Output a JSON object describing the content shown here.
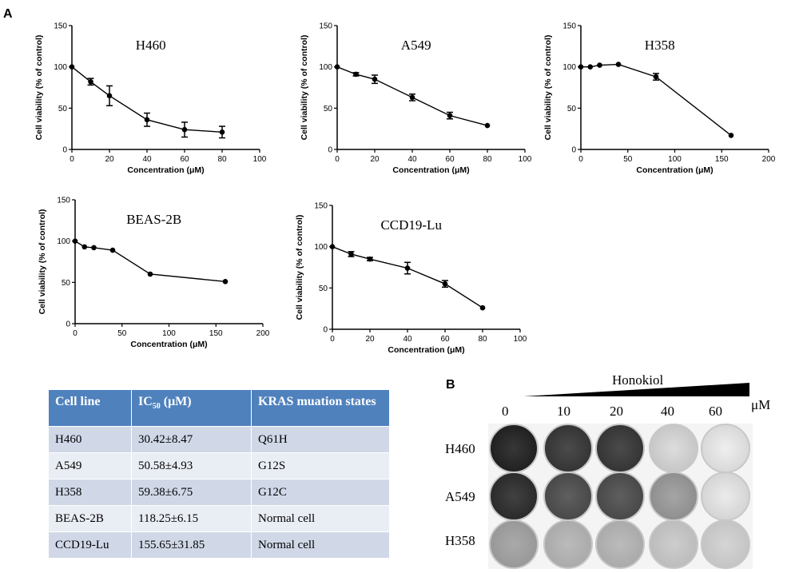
{
  "panel_labels": {
    "a": "A",
    "b": "B"
  },
  "chart_data": [
    {
      "type": "line",
      "title": "H460",
      "xlabel": "Concentration (μM)",
      "ylabel": "Cell viability (% of control)",
      "xlim": [
        0,
        100
      ],
      "ylim": [
        0,
        150
      ],
      "xticks": [
        0,
        20,
        40,
        60,
        80,
        100
      ],
      "yticks": [
        0,
        50,
        100,
        150
      ],
      "series": [
        {
          "name": "H460",
          "x": [
            0,
            10,
            20,
            40,
            60,
            80
          ],
          "values": [
            100,
            82,
            65,
            36,
            24,
            21
          ],
          "errors": [
            0,
            4,
            12,
            8,
            9,
            7
          ]
        }
      ]
    },
    {
      "type": "line",
      "title": "A549",
      "xlabel": "Concentration (μM)",
      "ylabel": "Cell viability (% of control)",
      "xlim": [
        0,
        100
      ],
      "ylim": [
        0,
        150
      ],
      "xticks": [
        0,
        20,
        40,
        60,
        80,
        100
      ],
      "yticks": [
        0,
        50,
        100,
        150
      ],
      "series": [
        {
          "name": "A549",
          "x": [
            0,
            10,
            20,
            40,
            60,
            80
          ],
          "values": [
            100,
            91,
            85,
            63,
            41,
            29
          ],
          "errors": [
            0,
            2,
            5,
            4,
            4,
            1
          ]
        }
      ]
    },
    {
      "type": "line",
      "title": "H358",
      "xlabel": "Concentration (μM)",
      "ylabel": "Cell viability (% of control)",
      "xlim": [
        0,
        200
      ],
      "ylim": [
        0,
        150
      ],
      "xticks": [
        0,
        50,
        100,
        150,
        200
      ],
      "yticks": [
        0,
        50,
        100,
        150
      ],
      "series": [
        {
          "name": "H358",
          "x": [
            0,
            10,
            20,
            40,
            80,
            160
          ],
          "values": [
            100,
            100,
            102,
            103,
            88,
            17
          ],
          "errors": [
            0,
            1,
            1,
            1,
            4,
            1
          ]
        }
      ]
    },
    {
      "type": "line",
      "title": "BEAS-2B",
      "xlabel": "Concentration (μM)",
      "ylabel": "Cell viability (% of control)",
      "xlim": [
        0,
        200
      ],
      "ylim": [
        0,
        150
      ],
      "xticks": [
        0,
        50,
        100,
        150,
        200
      ],
      "yticks": [
        0,
        50,
        100,
        150
      ],
      "series": [
        {
          "name": "BEAS-2B",
          "x": [
            0,
            10,
            20,
            40,
            80,
            160
          ],
          "values": [
            100,
            93,
            92,
            89,
            60,
            51
          ],
          "errors": [
            0,
            1,
            1,
            1,
            1,
            1
          ]
        }
      ]
    },
    {
      "type": "line",
      "title": "CCD19-Lu",
      "xlabel": "Concentration (μM)",
      "ylabel": "Cell viability (% of control)",
      "xlim": [
        0,
        100
      ],
      "ylim": [
        0,
        150
      ],
      "xticks": [
        0,
        20,
        40,
        60,
        80,
        100
      ],
      "yticks": [
        0,
        50,
        100,
        150
      ],
      "series": [
        {
          "name": "CCD19-Lu",
          "x": [
            0,
            10,
            20,
            40,
            60,
            80
          ],
          "values": [
            100,
            91,
            85,
            74,
            55,
            26
          ],
          "errors": [
            0,
            3,
            2,
            7,
            4,
            1
          ]
        }
      ]
    }
  ],
  "table": {
    "headers": [
      "Cell line",
      "IC50 (μM)",
      "KRAS muation states"
    ],
    "ic50_head_main": "IC",
    "ic50_head_sub": "50",
    "ic50_head_unit": " (μM)",
    "rows": [
      [
        "H460",
        "30.42±8.47",
        "Q61H"
      ],
      [
        "A549",
        "50.58±4.93",
        "G12S"
      ],
      [
        "H358",
        "59.38±6.75",
        "G12C"
      ],
      [
        "BEAS-2B",
        "118.25±6.15",
        "Normal cell"
      ],
      [
        "CCD19-Lu",
        "155.65±31.85",
        "Normal cell"
      ]
    ]
  },
  "colony": {
    "treatment": "Honokiol",
    "unit": "μM",
    "doses": [
      "0",
      "10",
      "20",
      "40",
      "60"
    ],
    "cell_lines": [
      "H460",
      "A549",
      "H358"
    ],
    "density": [
      [
        0.95,
        0.85,
        0.85,
        0.12,
        0.03
      ],
      [
        0.9,
        0.75,
        0.75,
        0.4,
        0.05
      ],
      [
        0.55,
        0.4,
        0.4,
        0.25,
        0.18
      ]
    ]
  }
}
